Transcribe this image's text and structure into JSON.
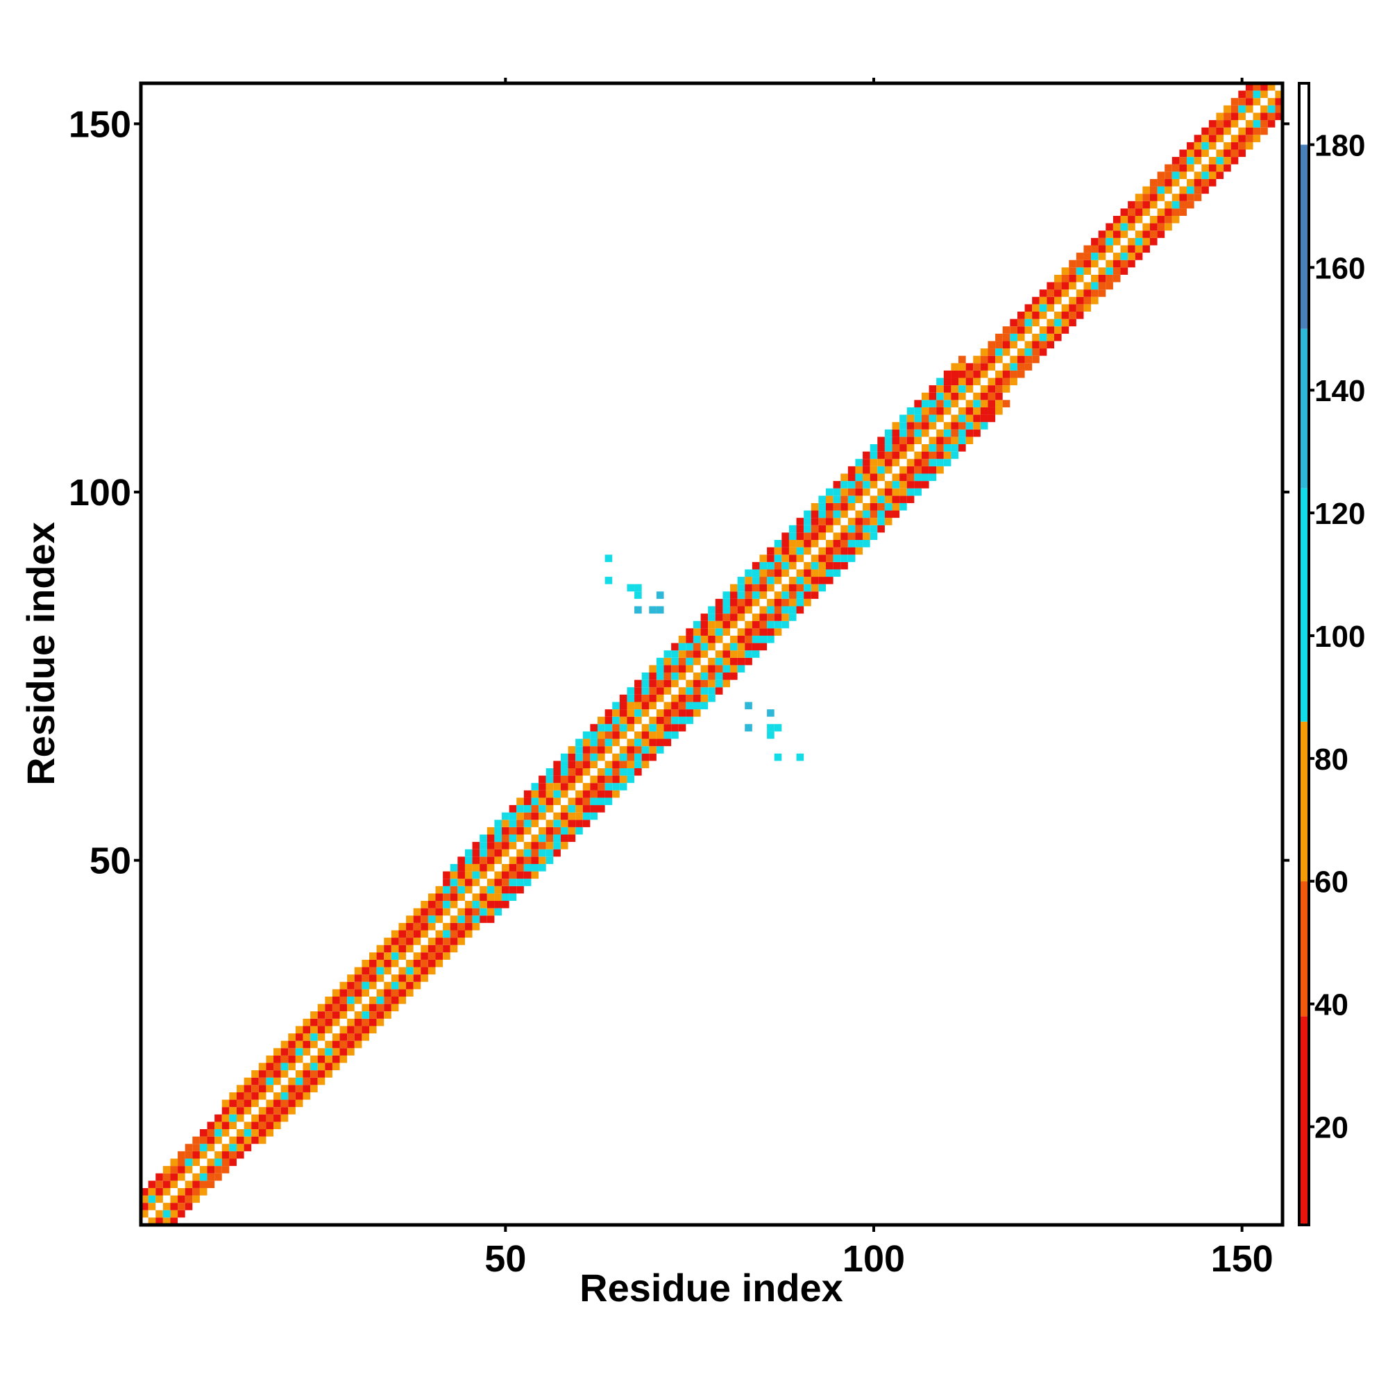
{
  "chart_data": {
    "type": "heatmap",
    "title": "",
    "xlabel": "Residue index",
    "ylabel": "Residue index",
    "xlim": [
      1,
      155
    ],
    "ylim": [
      1,
      155
    ],
    "x_ticks": [
      50,
      100,
      150
    ],
    "y_ticks": [
      50,
      100,
      150
    ],
    "grid": false,
    "symmetric": true,
    "band_structure": "contacts concentrated along the main diagonal within about 4-8 residues; wider blocks near residues 42-110; off-diagonal cross-shaped contacts near residues 63-90",
    "colorbar": {
      "range": [
        4,
        190
      ],
      "ticks": [
        20,
        40,
        60,
        80,
        100,
        120,
        140,
        160,
        180
      ],
      "colors": [
        {
          "from": 4,
          "to": 38,
          "color": "#e8150e"
        },
        {
          "from": 38,
          "to": 60,
          "color": "#ef5a0c"
        },
        {
          "from": 60,
          "to": 86,
          "color": "#f59b07"
        },
        {
          "from": 86,
          "to": 124,
          "color": "#14dce6"
        },
        {
          "from": 124,
          "to": 150,
          "color": "#2fb7d8"
        },
        {
          "from": 150,
          "to": 180,
          "color": "#4a80b8"
        },
        {
          "from": 180,
          "to": 190,
          "color": "#ffffff"
        }
      ]
    },
    "diagonal_band_values_by_offset": [
      {
        "offset": 1,
        "value": 75
      },
      {
        "offset": 2,
        "value": 20
      },
      {
        "offset": 3,
        "value": 50
      },
      {
        "offset": 4,
        "value": 25
      },
      {
        "offset": 5,
        "value": 70
      },
      {
        "offset": 6,
        "value": 100
      }
    ],
    "off_diagonal_contacts": [
      {
        "x": 64,
        "y": 91,
        "value": 105
      },
      {
        "x": 64,
        "y": 88,
        "value": 110
      },
      {
        "x": 67,
        "y": 87,
        "value": 120
      },
      {
        "x": 68,
        "y": 87,
        "value": 120
      },
      {
        "x": 68,
        "y": 86,
        "value": 120
      },
      {
        "x": 71,
        "y": 86,
        "value": 125
      },
      {
        "x": 68,
        "y": 84,
        "value": 125
      },
      {
        "x": 70,
        "y": 84,
        "value": 125
      },
      {
        "x": 71,
        "y": 84,
        "value": 125
      },
      {
        "x": 83,
        "y": 71,
        "value": 125
      },
      {
        "x": 86,
        "y": 70,
        "value": 125
      },
      {
        "x": 83,
        "y": 68,
        "value": 125
      },
      {
        "x": 86,
        "y": 68,
        "value": 120
      },
      {
        "x": 87,
        "y": 68,
        "value": 120
      },
      {
        "x": 86,
        "y": 67,
        "value": 120
      },
      {
        "x": 87,
        "y": 64,
        "value": 110
      },
      {
        "x": 90,
        "y": 64,
        "value": 105
      }
    ]
  }
}
